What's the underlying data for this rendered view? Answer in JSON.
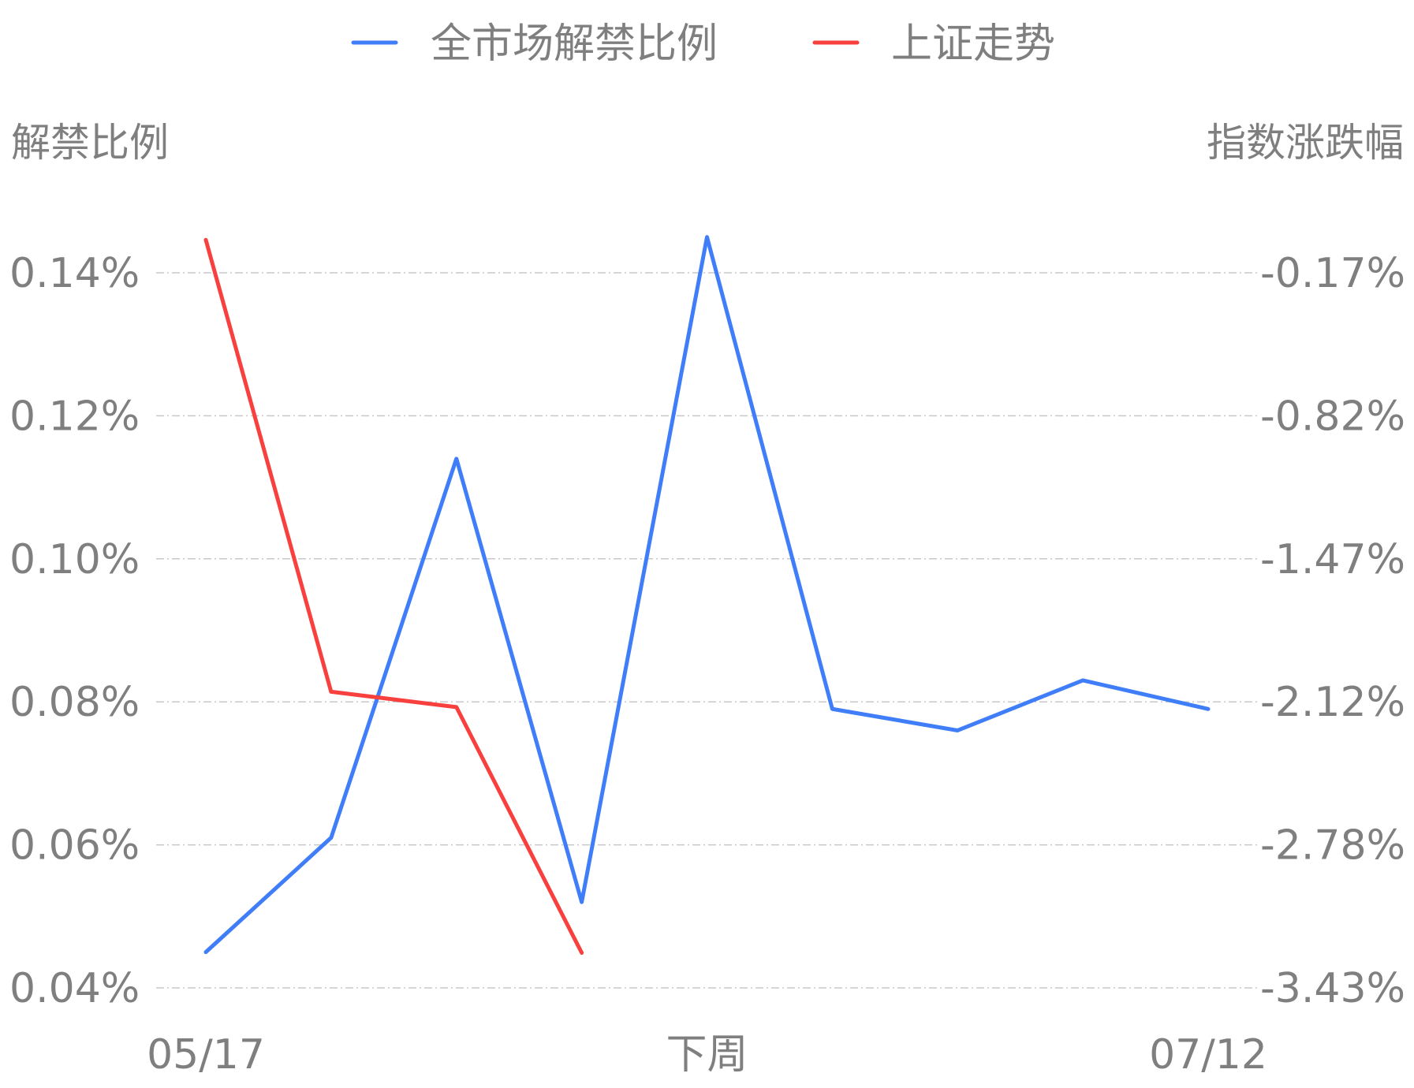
{
  "chart_data": {
    "type": "line",
    "legend": {
      "placement": "top-center",
      "entries": [
        "全市场解禁比例",
        "上证走势"
      ]
    },
    "y_left": {
      "title": "解禁比例",
      "ticks": [
        "0.14%",
        "0.12%",
        "0.10%",
        "0.08%",
        "0.06%",
        "0.04%"
      ],
      "range": [
        0.04,
        0.14
      ]
    },
    "y_right": {
      "title": "指数涨跌幅",
      "ticks": [
        "-0.17%",
        "-0.82%",
        "-1.47%",
        "-2.12%",
        "-2.78%",
        "-3.43%"
      ],
      "range": [
        -3.43,
        -0.17
      ]
    },
    "x_tick_labels": [
      {
        "index": 0,
        "label": "05/17"
      },
      {
        "index": 4,
        "label": "下周"
      },
      {
        "index": 8,
        "label": "07/12"
      }
    ],
    "point_count": 9,
    "grid": true,
    "series": [
      {
        "name": "全市场解禁比例",
        "axis": "left",
        "color": "#3f7ef8",
        "values": [
          0.045,
          0.061,
          0.114,
          0.052,
          0.145,
          0.079,
          0.076,
          0.083,
          0.079
        ]
      },
      {
        "name": "上证走势",
        "axis": "right",
        "color": "#f8403f",
        "values": [
          -0.02,
          -2.08,
          -2.15,
          -3.27
        ]
      }
    ]
  }
}
